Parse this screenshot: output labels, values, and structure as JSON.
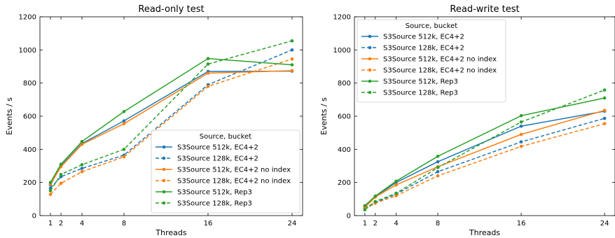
{
  "colors": {
    "S3Source 512k, EC4+2": "#1f77b4",
    "S3Source 128k, EC4+2": "#1f77b4",
    "S3Source 512k, EC4+2 no index": "#ff7f0e",
    "S3Source 128k, EC4+2 no index": "#ff7f0e",
    "S3Source 512k, Rep3": "#2ca02c",
    "S3Source 128k, Rep3": "#2ca02c"
  },
  "chart_data": [
    {
      "type": "line",
      "title": "Read-only test",
      "xlabel": "Threads",
      "ylabel": "Events / s",
      "x": [
        1,
        2,
        4,
        8,
        16,
        24
      ],
      "xticks": [
        1,
        2,
        4,
        8,
        16,
        24
      ],
      "xlim": [
        0,
        25
      ],
      "ylim": [
        0,
        1200
      ],
      "yticks": [
        0,
        200,
        400,
        600,
        800,
        1000,
        1200
      ],
      "grid": false,
      "legend": {
        "title": "Source, bucket",
        "placement": "lower-right"
      },
      "series": [
        {
          "name": "S3Source 512k, EC4+2",
          "style": "solid",
          "values": [
            185,
            300,
            435,
            572,
            870,
            872
          ]
        },
        {
          "name": "S3Source 128k, EC4+2",
          "style": "dashed",
          "values": [
            165,
            235,
            285,
            365,
            790,
            1000
          ]
        },
        {
          "name": "S3Source 512k, EC4+2 no index",
          "style": "solid",
          "values": [
            190,
            295,
            430,
            555,
            860,
            875
          ]
        },
        {
          "name": "S3Source 128k, EC4+2 no index",
          "style": "dashed",
          "values": [
            128,
            195,
            265,
            355,
            780,
            945
          ]
        },
        {
          "name": "S3Source 512k, Rep3",
          "style": "solid",
          "values": [
            200,
            310,
            447,
            628,
            948,
            910
          ]
        },
        {
          "name": "S3Source 128k, Rep3",
          "style": "dashed",
          "values": [
            150,
            248,
            307,
            400,
            915,
            1055
          ]
        }
      ]
    },
    {
      "type": "line",
      "title": "Read-write test",
      "xlabel": "Threads",
      "ylabel": "Events / s",
      "x": [
        1,
        2,
        4,
        8,
        16,
        24
      ],
      "xticks": [
        1,
        2,
        4,
        8,
        16,
        24
      ],
      "xlim": [
        0,
        25
      ],
      "ylim": [
        0,
        1200
      ],
      "yticks": [
        0,
        200,
        400,
        600,
        800,
        1000,
        1200
      ],
      "grid": false,
      "legend": {
        "title": "Source, bucket",
        "placement": "upper-left"
      },
      "series": [
        {
          "name": "S3Source 512k, EC4+2",
          "style": "solid",
          "values": [
            55,
            115,
            200,
            325,
            540,
            630
          ]
        },
        {
          "name": "S3Source 128k, EC4+2",
          "style": "dashed",
          "values": [
            45,
            80,
            130,
            265,
            445,
            587
          ]
        },
        {
          "name": "S3Source 512k, EC4+2 no index",
          "style": "solid",
          "values": [
            50,
            112,
            185,
            295,
            490,
            635
          ]
        },
        {
          "name": "S3Source 128k, EC4+2 no index",
          "style": "dashed",
          "values": [
            40,
            75,
            120,
            240,
            418,
            555
          ]
        },
        {
          "name": "S3Source 512k, Rep3",
          "style": "solid",
          "values": [
            60,
            118,
            208,
            358,
            603,
            710
          ]
        },
        {
          "name": "S3Source 128k, Rep3",
          "style": "dashed",
          "values": [
            35,
            85,
            135,
            290,
            565,
            758
          ]
        }
      ]
    }
  ]
}
